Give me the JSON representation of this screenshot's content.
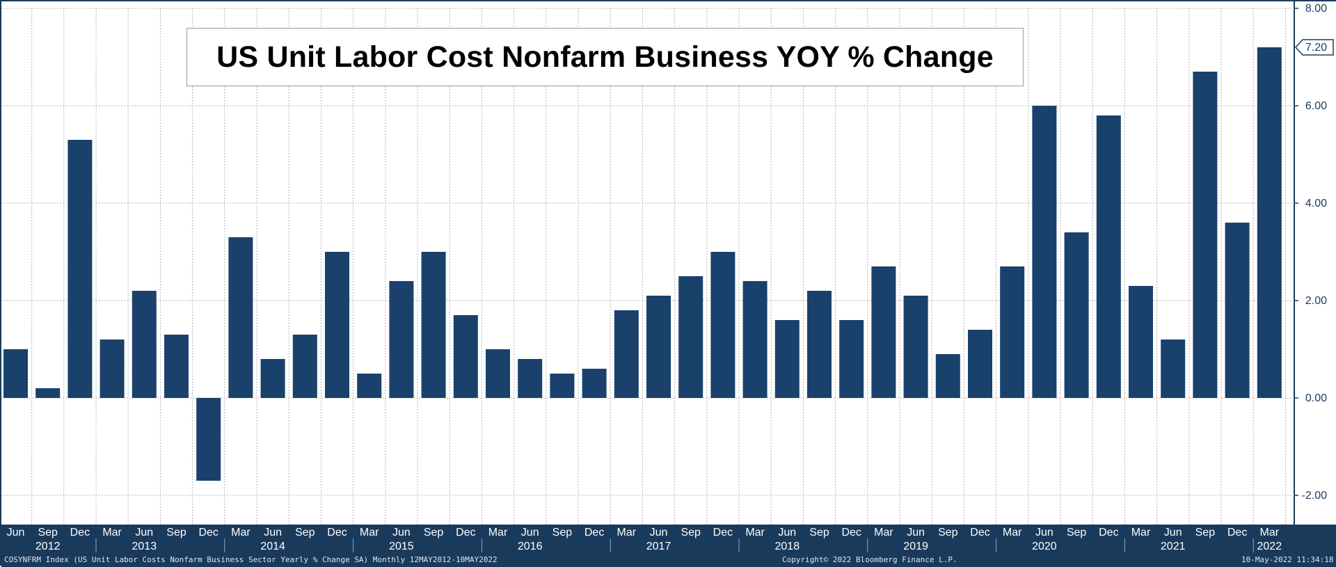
{
  "chart_data": {
    "type": "bar",
    "title": "US Unit Labor Cost Nonfarm Business YOY % Change",
    "categories": [
      "Jun",
      "Sep",
      "Dec",
      "Mar",
      "Jun",
      "Sep",
      "Dec",
      "Mar",
      "Jun",
      "Sep",
      "Dec",
      "Mar",
      "Jun",
      "Sep",
      "Dec",
      "Mar",
      "Jun",
      "Sep",
      "Dec",
      "Mar",
      "Jun",
      "Sep",
      "Dec",
      "Mar",
      "Jun",
      "Sep",
      "Dec",
      "Mar",
      "Jun",
      "Sep",
      "Dec",
      "Mar",
      "Jun",
      "Sep",
      "Dec",
      "Mar",
      "Jun",
      "Sep",
      "Dec",
      "Mar"
    ],
    "year_labels": [
      {
        "label": "2012",
        "index": 1
      },
      {
        "label": "2013",
        "index": 4
      },
      {
        "label": "2014",
        "index": 8
      },
      {
        "label": "2015",
        "index": 12
      },
      {
        "label": "2016",
        "index": 16
      },
      {
        "label": "2017",
        "index": 20
      },
      {
        "label": "2018",
        "index": 24
      },
      {
        "label": "2019",
        "index": 28
      },
      {
        "label": "2020",
        "index": 32
      },
      {
        "label": "2021",
        "index": 36
      },
      {
        "label": "2022",
        "index": 39
      }
    ],
    "values": [
      1.0,
      0.2,
      5.3,
      1.2,
      2.2,
      1.3,
      -1.7,
      3.3,
      0.8,
      1.3,
      3.0,
      0.5,
      2.4,
      3.0,
      1.7,
      1.0,
      0.8,
      0.5,
      0.6,
      1.8,
      2.1,
      2.5,
      3.0,
      2.4,
      1.6,
      2.2,
      1.6,
      2.7,
      2.1,
      0.9,
      1.4,
      2.7,
      6.0,
      3.4,
      5.8,
      2.3,
      1.2,
      6.7,
      3.6,
      7.2
    ],
    "yticks": [
      "8.00",
      "6.00",
      "4.00",
      "2.00",
      "0.00",
      "-2.00"
    ],
    "ytick_values": [
      8,
      6,
      4,
      2,
      0,
      -2
    ],
    "ylim": [
      -2.6,
      8.0
    ],
    "last_value_label": "7.20",
    "grid": true,
    "colors": {
      "bar": "#1a416b",
      "axis": "#1a3a5c",
      "grid": "#b5b5b5",
      "tag_bg": "#1a3a5c",
      "tag_text": "#ffffff"
    }
  },
  "footer": {
    "left": "COSYNFRM Index (US Unit Labor Costs Nonfarm Business Sector Yearly % Change SA)  Monthly 12MAY2012-10MAY2022",
    "center": "Copyright© 2022 Bloomberg Finance L.P.",
    "right": "10-May-2022 11:34:18"
  }
}
